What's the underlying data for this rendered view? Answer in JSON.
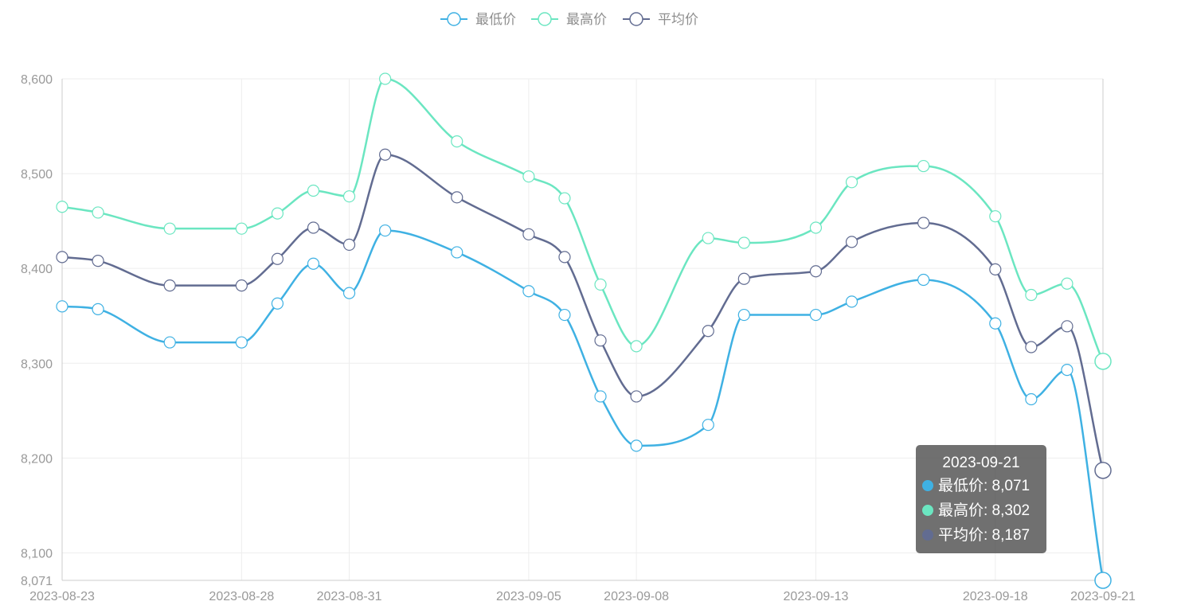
{
  "chart_data": {
    "type": "line",
    "smooth": true,
    "x": [
      "2023-08-23",
      "2023-08-24",
      "2023-08-26",
      "2023-08-28",
      "2023-08-29",
      "2023-08-30",
      "2023-08-31",
      "2023-09-01",
      "2023-09-03",
      "2023-09-05",
      "2023-09-06",
      "2023-09-07",
      "2023-09-08",
      "2023-09-10",
      "2023-09-11",
      "2023-09-13",
      "2023-09-14",
      "2023-09-16",
      "2023-09-18",
      "2023-09-19",
      "2023-09-20",
      "2023-09-21"
    ],
    "x_tick_labels": [
      "2023-08-23",
      "2023-08-28",
      "2023-08-31",
      "2023-09-05",
      "2023-09-08",
      "2023-09-13",
      "2023-09-18",
      "2023-09-21"
    ],
    "y_tick_labels": [
      "8,071",
      "8,100",
      "8,200",
      "8,300",
      "8,400",
      "8,500",
      "8,600"
    ],
    "ylim": [
      8071,
      8600
    ],
    "grid": true,
    "legend_position": "top-center",
    "series": [
      {
        "name": "最低价",
        "color": "#3fb1e3",
        "values": [
          8360,
          8357,
          8322,
          8322,
          8363,
          8405,
          8374,
          8440,
          8417,
          8376,
          8351,
          8265,
          8213,
          8235,
          8351,
          8351,
          8365,
          8388,
          8342,
          8262,
          8293,
          8071
        ]
      },
      {
        "name": "最高价",
        "color": "#6be6c1",
        "values": [
          8465,
          8459,
          8442,
          8442,
          8458,
          8482,
          8476,
          8600,
          8534,
          8497,
          8474,
          8383,
          8318,
          8432,
          8427,
          8443,
          8491,
          8508,
          8455,
          8372,
          8384,
          8302
        ]
      },
      {
        "name": "平均价",
        "color": "#626c91",
        "values": [
          8412,
          8408,
          8382,
          8382,
          8410,
          8443,
          8425,
          8520,
          8475,
          8436,
          8412,
          8324,
          8265,
          8334,
          8389,
          8397,
          8428,
          8448,
          8399,
          8317,
          8339,
          8187
        ]
      }
    ],
    "tooltip": {
      "title": "2023-09-21",
      "rows": [
        {
          "text": "最低价: 8,071",
          "color": "#3fb1e3"
        },
        {
          "text": "最高价: 8,302",
          "color": "#6be6c1"
        },
        {
          "text": "平均价: 8,187",
          "color": "#626c91"
        }
      ]
    }
  }
}
